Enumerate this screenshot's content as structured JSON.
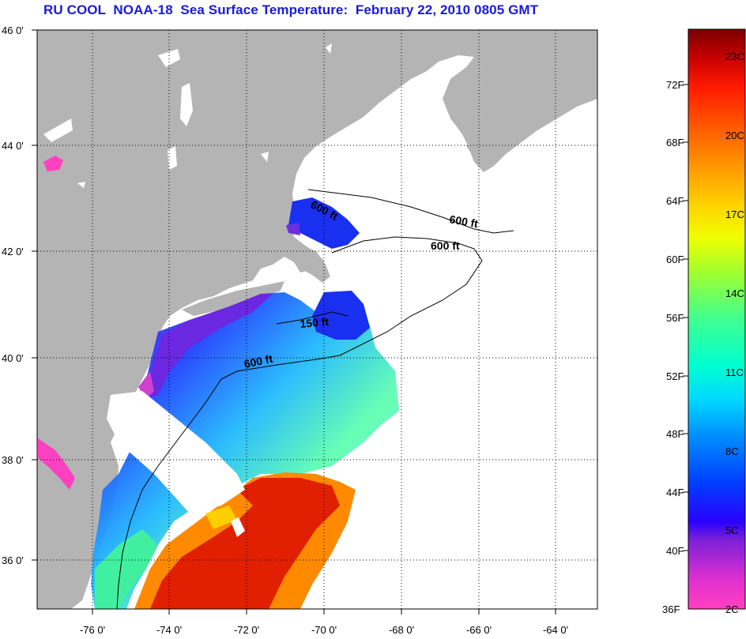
{
  "title": "RU COOL  NOAA-18  Sea Surface Temperature:  February 22, 2010 0805 GMT",
  "map": {
    "lat_labels": [
      "46 0'",
      "44 0'",
      "42 0'",
      "40 0'",
      "38 0'",
      "36 0'"
    ],
    "lon_labels": [
      "-76 0'",
      "-74 0'",
      "-72 0'",
      "-70 0'",
      "-68 0'",
      "-66 0'",
      "-64 0'"
    ],
    "contour_labels": [
      "600 ft",
      "600 ft",
      "600 ft",
      "150 ft",
      "600 ft"
    ],
    "colors": {
      "land": "#b4b4b4",
      "ocean_nodata": "#ffffff",
      "grid": "#000000"
    }
  },
  "colorbar": {
    "fahrenheit_labels": [
      "72F",
      "68F",
      "64F",
      "60F",
      "56F",
      "52F",
      "48F",
      "44F",
      "40F",
      "36F"
    ],
    "celsius_labels": [
      "23C",
      "20C",
      "17C",
      "14C",
      "11C",
      "8C",
      "5C",
      "2C"
    ],
    "range_f": [
      36,
      76
    ],
    "gradient": [
      "#7a0000",
      "#c40000",
      "#ff1a00",
      "#ff6a00",
      "#ff9a00",
      "#ffd000",
      "#f0ff00",
      "#9cff30",
      "#40ff90",
      "#00ffd8",
      "#00c8ff",
      "#0080ff",
      "#0030ff",
      "#1a00ff",
      "#7a20d8",
      "#c020d0",
      "#ff30c0",
      "#ff40c0"
    ]
  }
}
